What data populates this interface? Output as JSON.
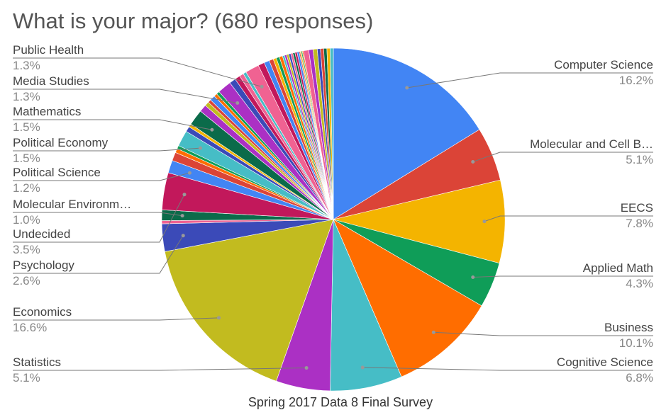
{
  "chart_data": {
    "type": "pie",
    "title": "What is your major? (680 responses)",
    "subtitle": "Spring 2017 Data 8 Final Survey",
    "categories": [
      "Computer Science",
      "Molecular and Cell B…",
      "EECS",
      "Applied Math",
      "Business",
      "Cognitive Science",
      "Statistics",
      "Economics",
      "Psychology",
      null,
      "Molecular Environm…",
      "Undecided",
      "Political Science",
      null,
      null,
      null,
      "Political Economy",
      null,
      null,
      "Mathematics",
      null,
      null,
      null,
      null,
      null,
      null,
      "Media Studies",
      null,
      null,
      null,
      null,
      "Public Health",
      null,
      null,
      null,
      null,
      null,
      null,
      null,
      null,
      null,
      null,
      null,
      null,
      null,
      null,
      null,
      null,
      null,
      null,
      null,
      null,
      null,
      null,
      null,
      null,
      null,
      null
    ],
    "values": [
      16.2,
      5.1,
      7.8,
      4.3,
      10.1,
      6.8,
      5.1,
      16.6,
      2.6,
      0.3,
      1.0,
      3.5,
      1.2,
      0.8,
      0.4,
      0.3,
      1.5,
      0.5,
      0.3,
      1.5,
      0.7,
      0.4,
      0.3,
      0.5,
      0.3,
      0.3,
      1.3,
      0.6,
      0.5,
      0.4,
      0.3,
      1.3,
      0.6,
      0.5,
      0.4,
      0.3,
      0.3,
      0.3,
      0.2,
      0.2,
      0.2,
      0.2,
      0.2,
      0.2,
      0.2,
      0.2,
      0.1,
      0.1,
      0.1,
      0.1,
      0.5,
      0.4,
      0.4,
      0.3,
      0.3,
      0.3,
      0.3,
      0.3
    ],
    "value_labels": [
      "16.2%",
      "5.1%",
      "7.8%",
      "4.3%",
      "10.1%",
      "6.8%",
      "5.1%",
      "16.6%",
      "2.6%",
      null,
      "1.0%",
      "3.5%",
      "1.2%",
      null,
      null,
      null,
      "1.5%",
      null,
      null,
      "1.5%",
      null,
      null,
      null,
      null,
      null,
      null,
      "1.3%",
      null,
      null,
      null,
      null,
      "1.3%",
      null,
      null,
      null,
      null,
      null,
      null,
      null,
      null,
      null,
      null,
      null,
      null,
      null,
      null,
      null,
      null,
      null,
      null,
      null,
      null,
      null,
      null,
      null,
      null,
      null,
      null
    ],
    "colors": [
      "#4285f4",
      "#db4437",
      "#f4b400",
      "#0f9d58",
      "#ff6d00",
      "#46bdc6",
      "#ab30c4",
      "#c2bb1f",
      "#3b4ab8",
      "#f06292",
      "#0b6b4a",
      "#c2185b",
      "#4285f4",
      "#db4437",
      "#ff6d00",
      "#0f9d58",
      "#46bdc6",
      "#3b4ab8",
      "#f4b400",
      "#0b6b4a",
      "#ab30c4",
      "#c2bb1f",
      "#db4437",
      "#4285f4",
      "#ff6d00",
      "#0f9d58",
      "#ab30c4",
      "#3b4ab8",
      "#c2185b",
      "#f06292",
      "#46bdc6",
      "#f06292",
      "#c2185b",
      "#4285f4",
      "#db4437",
      "#f4b400",
      "#0f9d58",
      "#ff6d00",
      "#46bdc6",
      "#ab30c4",
      "#c2bb1f",
      "#3b4ab8",
      "#f06292",
      "#0b6b4a",
      "#c2185b",
      "#4285f4",
      "#db4437",
      "#f4b400",
      "#0f9d58",
      "#ff6d00",
      "#f06292",
      "#ab30c4",
      "#c2bb1f",
      "#3b4ab8",
      "#db4437",
      "#0b6b4a",
      "#f4b400",
      "#46bdc6"
    ]
  }
}
